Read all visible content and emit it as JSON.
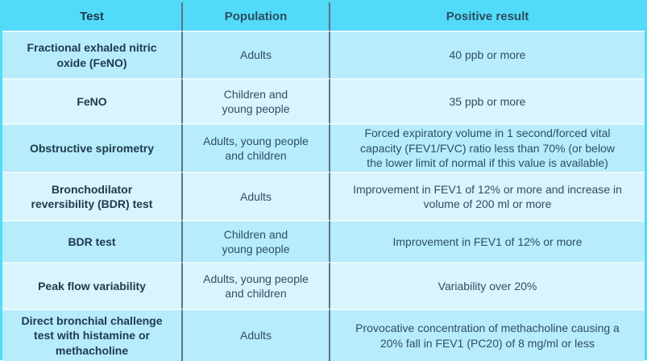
{
  "chart_data": {
    "type": "table",
    "title": "",
    "columns": [
      "Test",
      "Population",
      "Positive result"
    ],
    "rows": [
      {
        "test": "Fractional exhaled nitric\noxide (FeNO)",
        "population": "Adults",
        "result": "40 ppb or more"
      },
      {
        "test": "FeNO",
        "population": "Children and\nyoung people",
        "result": "35 ppb or more"
      },
      {
        "test": "Obstructive spirometry",
        "population": "Adults, young people\nand children",
        "result": "Forced expiratory volume in 1 second/forced vital\ncapacity (FEV1/FVC) ratio less than 70% (or below\nthe lower limit of normal if this value is available)"
      },
      {
        "test": "Bronchodilator\nreversibility (BDR) test",
        "population": "Adults",
        "result": "Improvement in FEV1 of 12% or more and increase in\nvolume of 200 ml or more"
      },
      {
        "test": "BDR test",
        "population": "Children and\nyoung people",
        "result": "Improvement in FEV1 of 12% or more"
      },
      {
        "test": "Peak flow variability",
        "population": "Adults, young people\nand children",
        "result": "Variability over 20%"
      },
      {
        "test": "Direct bronchial challenge\ntest with histamine or\nmethacholine",
        "population": "Adults",
        "result": "Provocative concentration of methacholine causing a\n20% fall in FEV1 (PC20) of 8 mg/ml or less"
      }
    ],
    "layout_hints": {
      "header_position": "top",
      "alternating_rows": true
    }
  },
  "colors": {
    "header_bg": "#52dbf8",
    "outer_border": "#52dbf8",
    "row_odd_bg": "#b6ecfb",
    "row_even_bg": "#d9f4fd",
    "column_divider": "#5d7380",
    "row_separator": "#e9fafd",
    "header_text": "#1a2c3d",
    "test_column_text": "#203a4c",
    "body_text": "#2d4e63"
  }
}
